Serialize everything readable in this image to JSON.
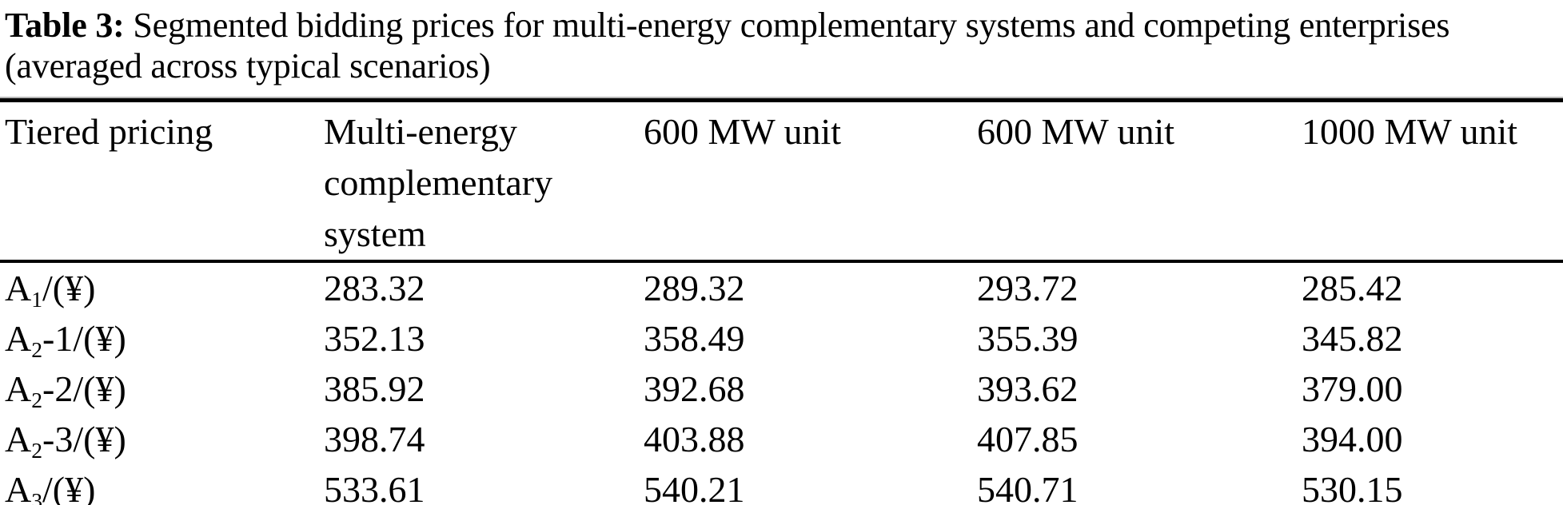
{
  "caption": {
    "label": "Table 3:",
    "line1_rest": " Segmented bidding prices for multi-energy complementary systems and competing enterprises",
    "line2": "(averaged across typical scenarios)"
  },
  "table": {
    "columns": [
      "Tiered pricing",
      "Multi-energy complementary system",
      "600 MW unit",
      "600 MW unit",
      "1000 MW unit"
    ],
    "rows": [
      {
        "label": {
          "base": "A",
          "sub": "1",
          "suffix": "/(¥)"
        },
        "values": [
          "283.32",
          "289.32",
          "293.72",
          "285.42"
        ]
      },
      {
        "label": {
          "base": "A",
          "sub": "2",
          "suffix": "-1/(¥)"
        },
        "values": [
          "352.13",
          "358.49",
          "355.39",
          "345.82"
        ]
      },
      {
        "label": {
          "base": "A",
          "sub": "2",
          "suffix": "-2/(¥)"
        },
        "values": [
          "385.92",
          "392.68",
          "393.62",
          "379.00"
        ]
      },
      {
        "label": {
          "base": "A",
          "sub": "2",
          "suffix": "-3/(¥)"
        },
        "values": [
          "398.74",
          "403.88",
          "407.85",
          "394.00"
        ]
      },
      {
        "label": {
          "base": "A",
          "sub": "3",
          "suffix": "/(¥)"
        },
        "values": [
          "533.61",
          "540.21",
          "540.71",
          "530.15"
        ]
      }
    ]
  },
  "colors": {
    "background": "#ffffff",
    "text": "#000000",
    "rule": "#000000"
  }
}
